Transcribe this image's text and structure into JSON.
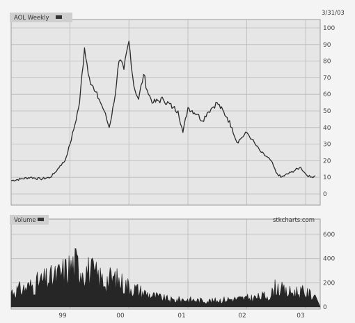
{
  "chart_data": [
    {
      "type": "line",
      "title": "AOL Weekly",
      "menu_icon": "dropdown-marker",
      "date_label": "3/31/03",
      "x_ticks": [
        "99",
        "00",
        "01",
        "02",
        "03"
      ],
      "y_ticks": [
        "100",
        "90",
        "80",
        "70",
        "60",
        "50",
        "40",
        "30",
        "20",
        "10",
        "0"
      ],
      "ylim": [
        0,
        100
      ],
      "grid": true,
      "colors": {
        "line": "#2b2b2b",
        "panel": "#e6e6e6",
        "grid": "#b8b8b8"
      },
      "series": [
        {
          "x": [
            "1998-01",
            "1998-03",
            "1998-05",
            "1998-07",
            "1998-09",
            "1998-10",
            "1998-11",
            "1998-12",
            "1999-01",
            "1999-02",
            "1999-03",
            "1999-04",
            "1999-05",
            "1999-06",
            "1999-07",
            "1999-08",
            "1999-09",
            "1999-10",
            "1999-11",
            "1999-12",
            "2000-01",
            "2000-02",
            "2000-03",
            "2000-04",
            "2000-05",
            "2000-06",
            "2000-08",
            "2000-10",
            "2000-11",
            "2000-12",
            "2001-01",
            "2001-03",
            "2001-04",
            "2001-05",
            "2001-06",
            "2001-07",
            "2001-09",
            "2001-10",
            "2001-11",
            "2001-12",
            "2002-01",
            "2002-02",
            "2002-03",
            "2002-04",
            "2002-06",
            "2002-07",
            "2002-08",
            "2002-10",
            "2002-12",
            "2003-01",
            "2003-02",
            "2003-03"
          ],
          "values": [
            8,
            9,
            10,
            9,
            10,
            13,
            17,
            20,
            30,
            42,
            55,
            88,
            70,
            62,
            57,
            50,
            40,
            55,
            80,
            75,
            92,
            65,
            57,
            72,
            60,
            55,
            57,
            52,
            50,
            37,
            52,
            48,
            44,
            49,
            52,
            55,
            46,
            40,
            31,
            34,
            37,
            33,
            29,
            25,
            20,
            13,
            10,
            13,
            16,
            12,
            10,
            11
          ]
        }
      ]
    },
    {
      "type": "area",
      "title": "Volume",
      "menu_icon": "dropdown-marker",
      "watermark": "stkcharts.com",
      "x_ticks": [
        "99",
        "00",
        "01",
        "02",
        "03"
      ],
      "y_ticks": [
        "600",
        "400",
        "200",
        "0"
      ],
      "ylim": [
        0,
        600
      ],
      "grid": true,
      "colors": {
        "fill": "#262626",
        "panel": "#e6e6e6",
        "grid": "#b8b8b8"
      },
      "series": [
        {
          "x": [
            "1998-01",
            "1998-04",
            "1998-07",
            "1998-10",
            "1998-12",
            "1999-02",
            "1999-04",
            "1999-06",
            "1999-08",
            "1999-10",
            "1999-12",
            "2000-02",
            "2000-04",
            "2000-06",
            "2000-08",
            "2000-10",
            "2000-12",
            "2001-03",
            "2001-06",
            "2001-09",
            "2001-12",
            "2002-03",
            "2002-06",
            "2002-07",
            "2002-09",
            "2002-12",
            "2003-03"
          ],
          "values": [
            140,
            170,
            230,
            270,
            330,
            390,
            350,
            300,
            240,
            260,
            210,
            170,
            130,
            100,
            80,
            60,
            70,
            60,
            55,
            70,
            75,
            85,
            110,
            190,
            130,
            140,
            100
          ]
        }
      ]
    }
  ]
}
